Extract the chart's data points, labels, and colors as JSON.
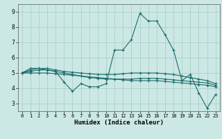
{
  "title": "",
  "xlabel": "Humidex (Indice chaleur)",
  "background_color": "#cce8e4",
  "grid_color": "#aacfcc",
  "line_color": "#1a6b6b",
  "xlim": [
    -0.5,
    23.5
  ],
  "ylim": [
    2.5,
    9.5
  ],
  "yticks": [
    3,
    4,
    5,
    6,
    7,
    8,
    9
  ],
  "xticks": [
    0,
    1,
    2,
    3,
    4,
    5,
    6,
    7,
    8,
    9,
    10,
    11,
    12,
    13,
    14,
    15,
    16,
    17,
    18,
    19,
    20,
    21,
    22,
    23
  ],
  "series": [
    [
      5.0,
      5.3,
      5.3,
      5.2,
      5.1,
      4.4,
      3.8,
      4.3,
      4.1,
      4.1,
      4.3,
      6.5,
      6.5,
      7.2,
      8.9,
      8.4,
      8.4,
      7.5,
      6.5,
      4.5,
      4.9,
      3.7,
      2.7,
      3.6
    ],
    [
      5.0,
      5.0,
      5.0,
      5.0,
      4.95,
      4.9,
      4.85,
      4.8,
      4.75,
      4.7,
      4.65,
      4.6,
      4.55,
      4.5,
      4.5,
      4.5,
      4.5,
      4.45,
      4.4,
      4.35,
      4.3,
      4.25,
      4.2,
      4.1
    ],
    [
      5.0,
      5.1,
      5.2,
      5.2,
      5.1,
      5.0,
      4.9,
      4.8,
      4.7,
      4.65,
      4.6,
      4.6,
      4.6,
      4.6,
      4.65,
      4.65,
      4.65,
      4.6,
      4.55,
      4.5,
      4.45,
      4.4,
      4.35,
      4.2
    ],
    [
      5.0,
      5.2,
      5.3,
      5.3,
      5.2,
      5.1,
      5.05,
      5.0,
      4.95,
      4.9,
      4.9,
      4.9,
      4.95,
      5.0,
      5.0,
      5.0,
      5.0,
      4.95,
      4.9,
      4.8,
      4.7,
      4.6,
      4.5,
      4.3
    ]
  ]
}
